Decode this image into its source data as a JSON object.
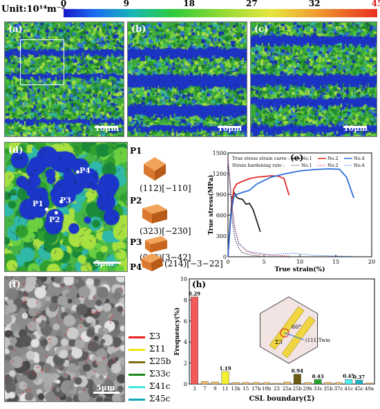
{
  "colorbar": {
    "unit_label": "Unit:10¹⁴m⁻²",
    "ticks": [
      "0",
      "9",
      "18",
      "27",
      "32",
      "45"
    ],
    "tick_colors": [
      "#000000",
      "#000000",
      "#000000",
      "#000000",
      "#000000",
      "#d81b1b"
    ]
  },
  "panels": {
    "a": {
      "label": "(a)",
      "scale": "10μm"
    },
    "b": {
      "label": "(b)",
      "scale": "10μm"
    },
    "c": {
      "label": "(c)",
      "scale": "10μm"
    },
    "d": {
      "label": "(d)",
      "scale": "5μm",
      "points": [
        "P1",
        "P2",
        "P3",
        "P4"
      ]
    },
    "f": {
      "label": "(f)",
      "scale": "5μm"
    }
  },
  "orientations": [
    {
      "name": "P1",
      "miller": "(112)[−110]"
    },
    {
      "name": "P2",
      "miller": "(323)[−230]"
    },
    {
      "name": "P3",
      "miller": "(012)[3−42]"
    },
    {
      "name": "P4",
      "miller": "(214)[−3−22]"
    }
  ],
  "csl_legend": [
    {
      "label": "Σ3",
      "color": "#e8201e"
    },
    {
      "label": "Σ11",
      "color": "#f0e418"
    },
    {
      "label": "Σ25b",
      "color": "#7a6a10"
    },
    {
      "label": "Σ33c",
      "color": "#1a8a1a"
    },
    {
      "label": "Σ41c",
      "color": "#3ee6e6"
    },
    {
      "label": "Σ45c",
      "color": "#12a6b8"
    }
  ],
  "chart_data": [
    {
      "type": "line",
      "panel_label": "(e)",
      "xlabel": "True strain(%)",
      "ylabel": "True stress(MPa)",
      "xlim": [
        0,
        20
      ],
      "ylim": [
        0,
        1500
      ],
      "x_ticks": [
        "0",
        "5",
        "10",
        "15",
        "20"
      ],
      "y_ticks": [
        "0",
        "300",
        "600",
        "900",
        "1200",
        "1500"
      ],
      "legend": {
        "row1_title": "True stress strain curve :",
        "row2_title": "Strain hardening rate :",
        "names": [
          "No.1",
          "No.2",
          "No.4"
        ]
      },
      "series": [
        {
          "name": "No.1",
          "color": "#222222",
          "style": "solid",
          "x": [
            0,
            0.3,
            0.6,
            0.9,
            1.2,
            1.5,
            2.0,
            2.5,
            3.0,
            3.5,
            4.0,
            4.5
          ],
          "y": [
            0,
            500,
            870,
            920,
            860,
            840,
            830,
            760,
            770,
            680,
            520,
            360
          ]
        },
        {
          "name": "No.2",
          "color": "#e02828",
          "style": "solid",
          "x": [
            0,
            0.4,
            0.8,
            1.2,
            2,
            3,
            4,
            5,
            6,
            7,
            7.8,
            8.5
          ],
          "y": [
            0,
            600,
            980,
            1050,
            1090,
            1130,
            1150,
            1160,
            1170,
            1165,
            1130,
            890
          ]
        },
        {
          "name": "No.4",
          "color": "#2a6ed8",
          "style": "solid",
          "x": [
            0,
            0.4,
            0.8,
            1.2,
            2,
            3,
            4,
            6,
            8,
            10,
            12,
            14,
            15.5,
            16.5,
            17.5
          ],
          "y": [
            0,
            600,
            860,
            900,
            930,
            960,
            1050,
            1150,
            1200,
            1240,
            1260,
            1270,
            1265,
            1150,
            850
          ]
        },
        {
          "name": "No.1",
          "color": "#222222",
          "style": "dotted",
          "x": [
            0,
            0.3,
            0.6,
            1.0,
            1.5,
            2.0,
            3.0,
            4.0,
            4.5
          ],
          "y": [
            1450,
            1000,
            500,
            250,
            120,
            60,
            30,
            15,
            10
          ]
        },
        {
          "name": "No.2",
          "color": "#e02828",
          "style": "dotted",
          "x": [
            0,
            0.3,
            0.6,
            1.0,
            1.5,
            2.5,
            4,
            6,
            8.5
          ],
          "y": [
            1420,
            1100,
            700,
            400,
            200,
            80,
            40,
            20,
            10
          ]
        },
        {
          "name": "No.4",
          "color": "#2a6ed8",
          "style": "dotted",
          "x": [
            0,
            0.4,
            0.8,
            1.5,
            3,
            6,
            9,
            10,
            12,
            15,
            17.5
          ],
          "y": [
            1380,
            900,
            450,
            180,
            70,
            30,
            50,
            40,
            20,
            10,
            5
          ]
        }
      ]
    },
    {
      "type": "bar",
      "panel_label": "(h)",
      "xlabel": "CSL boundary(Σ)",
      "ylabel": "Frequency(%)",
      "ylim": [
        0,
        10
      ],
      "y_ticks": [
        "0",
        "2",
        "4",
        "6",
        "8",
        "10"
      ],
      "categories": [
        "3",
        "7",
        "9",
        "11",
        "13b",
        "15",
        "17b",
        "19b",
        "23",
        "25a",
        "25b",
        "29b",
        "33c",
        "35b",
        "37c",
        "41c",
        "45c",
        "49a"
      ],
      "values": [
        8.29,
        0.25,
        0.2,
        1.19,
        0.15,
        0.15,
        0.15,
        0.15,
        0.08,
        0.2,
        0.94,
        0.15,
        0.43,
        0.15,
        0.15,
        0.45,
        0.37,
        0.1
      ],
      "colors": [
        "#f25a5a",
        "#f5c06a",
        "#f5c06a",
        "#f5f030",
        "#f5c06a",
        "#f5c06a",
        "#f5c06a",
        "#f5c06a",
        "#f5c06a",
        "#f5c06a",
        "#6b5a12",
        "#f5c06a",
        "#22a22a",
        "#f5c06a",
        "#f5c06a",
        "#4ff0f0",
        "#1fb4c8",
        "#f5c06a"
      ],
      "value_labels": [
        "8.29",
        "",
        "",
        "1.19",
        "",
        "",
        "",
        "",
        "",
        "",
        "0.94",
        "",
        "0.43",
        "",
        "",
        "0.45",
        "0.37",
        ""
      ],
      "inset": {
        "angle": "60°",
        "twin_plane": "(111)Twin",
        "sigma": "Σ3"
      }
    }
  ]
}
